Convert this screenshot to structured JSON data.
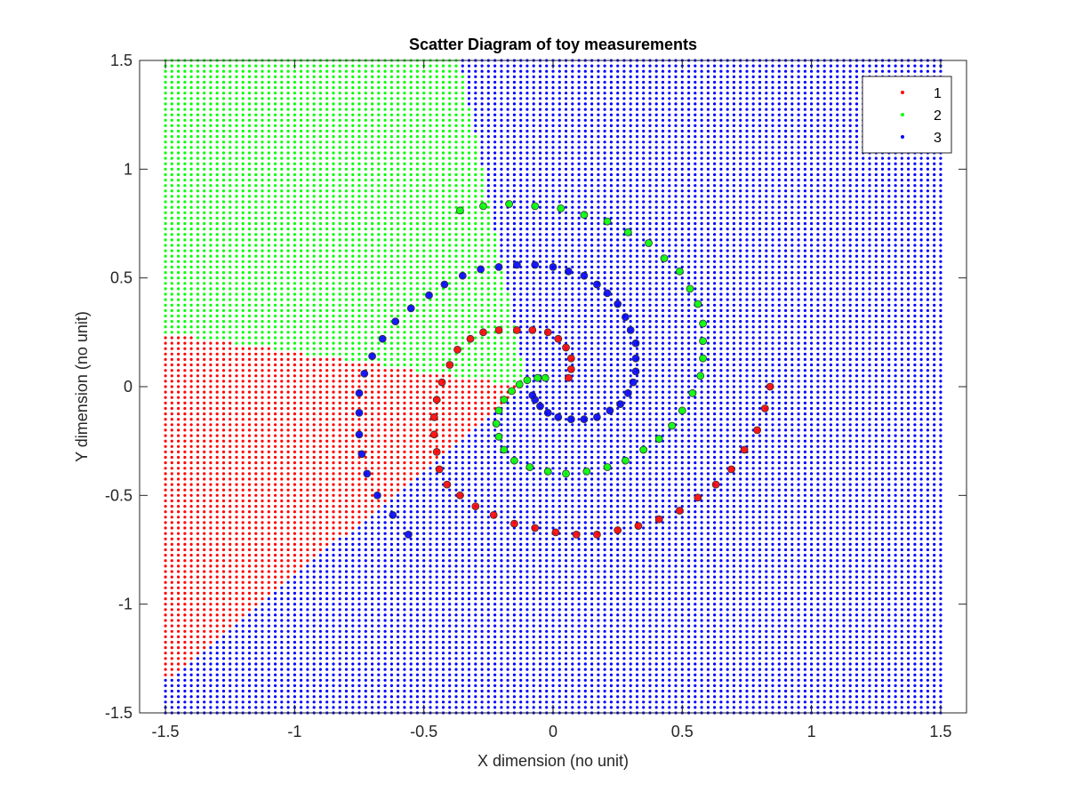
{
  "chart_data": {
    "type": "scatter",
    "title": "Scatter Diagram of toy measurements",
    "xlabel": "X dimension (no unit)",
    "ylabel": "Y dimension (no unit)",
    "xlim": [
      -1.6,
      1.6
    ],
    "ylim": [
      -1.5,
      1.5
    ],
    "xticks": [
      -1.5,
      -1,
      -0.5,
      0,
      0.5,
      1,
      1.5
    ],
    "xtick_labels": [
      "-1.5",
      "-1",
      "-0.5",
      "0",
      "0.5",
      "1",
      "1.5"
    ],
    "yticks": [
      -1.5,
      -1,
      -0.5,
      0,
      0.5,
      1,
      1.5
    ],
    "ytick_labels": [
      "-1.5",
      "-1",
      "-0.5",
      "0",
      "0.5",
      "1",
      "1.5"
    ],
    "grid": false,
    "legend_position": "top-right",
    "legend": [
      {
        "label": "1",
        "color": "#ff0000"
      },
      {
        "label": "2",
        "color": "#00ff00"
      },
      {
        "label": "3",
        "color": "#0000ff"
      }
    ],
    "background_grid": {
      "description_of_regions": "decision regions sampled on a dense grid",
      "x_range": [
        -1.5,
        1.5
      ],
      "y_range": [
        -1.5,
        1.5
      ],
      "step": 0.025,
      "colors": {
        "1": "#ff0000",
        "2": "#00ff00",
        "3": "#0000ff"
      },
      "region_3_boundary": [
        [
          -0.36,
          1.5
        ],
        [
          -0.1,
          0
        ],
        [
          -1.5,
          -1.35
        ]
      ],
      "region_2_boundary": [
        [
          -0.1,
          0
        ],
        [
          1.5,
          -0.28
        ]
      ]
    },
    "series": [
      {
        "name": "1",
        "color": "#ff0000",
        "points": [
          [
            0.84,
            0.0
          ],
          [
            0.82,
            -0.1
          ],
          [
            0.79,
            -0.2
          ],
          [
            0.74,
            -0.29
          ],
          [
            0.69,
            -0.38
          ],
          [
            0.63,
            -0.45
          ],
          [
            0.56,
            -0.51
          ],
          [
            0.49,
            -0.57
          ],
          [
            0.41,
            -0.61
          ],
          [
            0.33,
            -0.64
          ],
          [
            0.25,
            -0.66
          ],
          [
            0.17,
            -0.68
          ],
          [
            0.09,
            -0.68
          ],
          [
            0.01,
            -0.67
          ],
          [
            -0.07,
            -0.65
          ],
          [
            -0.15,
            -0.63
          ],
          [
            -0.23,
            -0.59
          ],
          [
            -0.3,
            -0.55
          ],
          [
            -0.36,
            -0.5
          ],
          [
            -0.41,
            -0.45
          ],
          [
            -0.44,
            -0.38
          ],
          [
            -0.45,
            -0.3
          ],
          [
            -0.46,
            -0.22
          ],
          [
            -0.46,
            -0.14
          ],
          [
            -0.45,
            -0.06
          ],
          [
            -0.43,
            0.02
          ],
          [
            -0.4,
            0.1
          ],
          [
            -0.37,
            0.17
          ],
          [
            -0.32,
            0.22
          ],
          [
            -0.27,
            0.25
          ],
          [
            -0.21,
            0.26
          ],
          [
            -0.14,
            0.26
          ],
          [
            -0.08,
            0.26
          ],
          [
            -0.02,
            0.25
          ],
          [
            0.02,
            0.22
          ],
          [
            0.05,
            0.18
          ],
          [
            0.07,
            0.13
          ],
          [
            0.07,
            0.08
          ],
          [
            0.06,
            0.04
          ]
        ]
      },
      {
        "name": "2",
        "color": "#00ff00",
        "points": [
          [
            -0.36,
            0.81
          ],
          [
            -0.27,
            0.83
          ],
          [
            -0.17,
            0.84
          ],
          [
            -0.07,
            0.83
          ],
          [
            0.03,
            0.82
          ],
          [
            0.12,
            0.79
          ],
          [
            0.21,
            0.76
          ],
          [
            0.29,
            0.71
          ],
          [
            0.37,
            0.66
          ],
          [
            0.43,
            0.59
          ],
          [
            0.49,
            0.53
          ],
          [
            0.53,
            0.45
          ],
          [
            0.56,
            0.38
          ],
          [
            0.58,
            0.29
          ],
          [
            0.58,
            0.21
          ],
          [
            0.58,
            0.13
          ],
          [
            0.57,
            0.05
          ],
          [
            0.54,
            -0.03
          ],
          [
            0.5,
            -0.11
          ],
          [
            0.46,
            -0.18
          ],
          [
            0.41,
            -0.24
          ],
          [
            0.35,
            -0.29
          ],
          [
            0.28,
            -0.34
          ],
          [
            0.21,
            -0.37
          ],
          [
            0.13,
            -0.39
          ],
          [
            0.05,
            -0.4
          ],
          [
            -0.02,
            -0.39
          ],
          [
            -0.09,
            -0.37
          ],
          [
            -0.15,
            -0.34
          ],
          [
            -0.19,
            -0.29
          ],
          [
            -0.21,
            -0.23
          ],
          [
            -0.22,
            -0.17
          ],
          [
            -0.21,
            -0.11
          ],
          [
            -0.19,
            -0.06
          ],
          [
            -0.16,
            -0.02
          ],
          [
            -0.13,
            0.01
          ],
          [
            -0.1,
            0.03
          ],
          [
            -0.06,
            0.04
          ],
          [
            -0.03,
            0.04
          ]
        ]
      },
      {
        "name": "3",
        "color": "#0000ff",
        "points": [
          [
            -0.56,
            -0.68
          ],
          [
            -0.62,
            -0.59
          ],
          [
            -0.68,
            -0.5
          ],
          [
            -0.72,
            -0.4
          ],
          [
            -0.74,
            -0.31
          ],
          [
            -0.75,
            -0.22
          ],
          [
            -0.75,
            -0.12
          ],
          [
            -0.75,
            -0.03
          ],
          [
            -0.73,
            0.06
          ],
          [
            -0.7,
            0.14
          ],
          [
            -0.66,
            0.22
          ],
          [
            -0.61,
            0.3
          ],
          [
            -0.55,
            0.36
          ],
          [
            -0.48,
            0.42
          ],
          [
            -0.42,
            0.47
          ],
          [
            -0.35,
            0.51
          ],
          [
            -0.28,
            0.54
          ],
          [
            -0.21,
            0.55
          ],
          [
            -0.14,
            0.56
          ],
          [
            -0.07,
            0.56
          ],
          [
            0.0,
            0.55
          ],
          [
            0.06,
            0.53
          ],
          [
            0.12,
            0.51
          ],
          [
            0.17,
            0.47
          ],
          [
            0.21,
            0.43
          ],
          [
            0.25,
            0.38
          ],
          [
            0.28,
            0.32
          ],
          [
            0.3,
            0.26
          ],
          [
            0.32,
            0.2
          ],
          [
            0.32,
            0.13
          ],
          [
            0.32,
            0.07
          ],
          [
            0.31,
            0.02
          ],
          [
            0.29,
            -0.03
          ],
          [
            0.26,
            -0.08
          ],
          [
            0.22,
            -0.11
          ],
          [
            0.17,
            -0.14
          ],
          [
            0.12,
            -0.15
          ],
          [
            0.07,
            -0.15
          ],
          [
            0.02,
            -0.14
          ],
          [
            -0.02,
            -0.12
          ],
          [
            -0.05,
            -0.09
          ],
          [
            -0.07,
            -0.06
          ],
          [
            -0.08,
            -0.04
          ]
        ]
      }
    ]
  }
}
